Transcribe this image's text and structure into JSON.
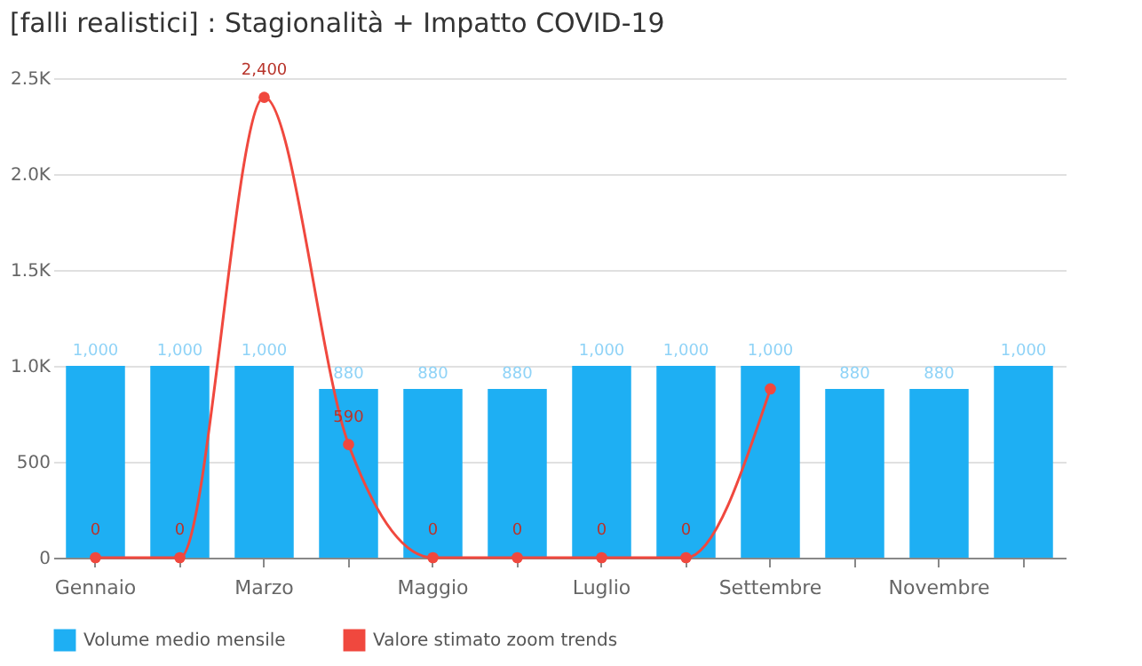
{
  "chart_data": {
    "type": "bar",
    "title": "[falli realistici] : Stagionalità + Impatto COVID-19",
    "categories": [
      "Gennaio",
      null,
      "Marzo",
      null,
      "Maggio",
      null,
      "Luglio",
      null,
      "Settembre",
      null,
      "Novembre",
      null
    ],
    "series": [
      {
        "name": "Volume medio mensile",
        "color": "#1eaff3",
        "values": [
          1000,
          1000,
          1000,
          880,
          880,
          880,
          1000,
          1000,
          1000,
          880,
          880,
          1000
        ],
        "value_labels": [
          "1,000",
          "1,000",
          "1,000",
          "880",
          "880",
          "880",
          "1,000",
          "1,000",
          "1,000",
          "880",
          "880",
          "1,000"
        ]
      },
      {
        "name": "Valore stimato zoom trends",
        "type": "line",
        "color": "#f0483e",
        "values": [
          0,
          0,
          2400,
          590,
          0,
          0,
          0,
          0,
          880,
          null,
          null,
          null
        ],
        "value_labels": [
          "0",
          "0",
          "2,400",
          "590",
          "0",
          "0",
          "0",
          "0",
          null,
          null,
          null,
          null
        ]
      }
    ],
    "ylim": [
      0,
      2500
    ],
    "yticks": [
      0,
      500,
      {
        "value": 1000,
        "label": "1.0K"
      },
      {
        "value": 1500,
        "label": "1.5K"
      },
      {
        "value": 2000,
        "label": "2.0K"
      },
      {
        "value": 2500,
        "label": "2.5K"
      }
    ],
    "grid": "y",
    "legend": "bottom",
    "marker": "circle"
  }
}
